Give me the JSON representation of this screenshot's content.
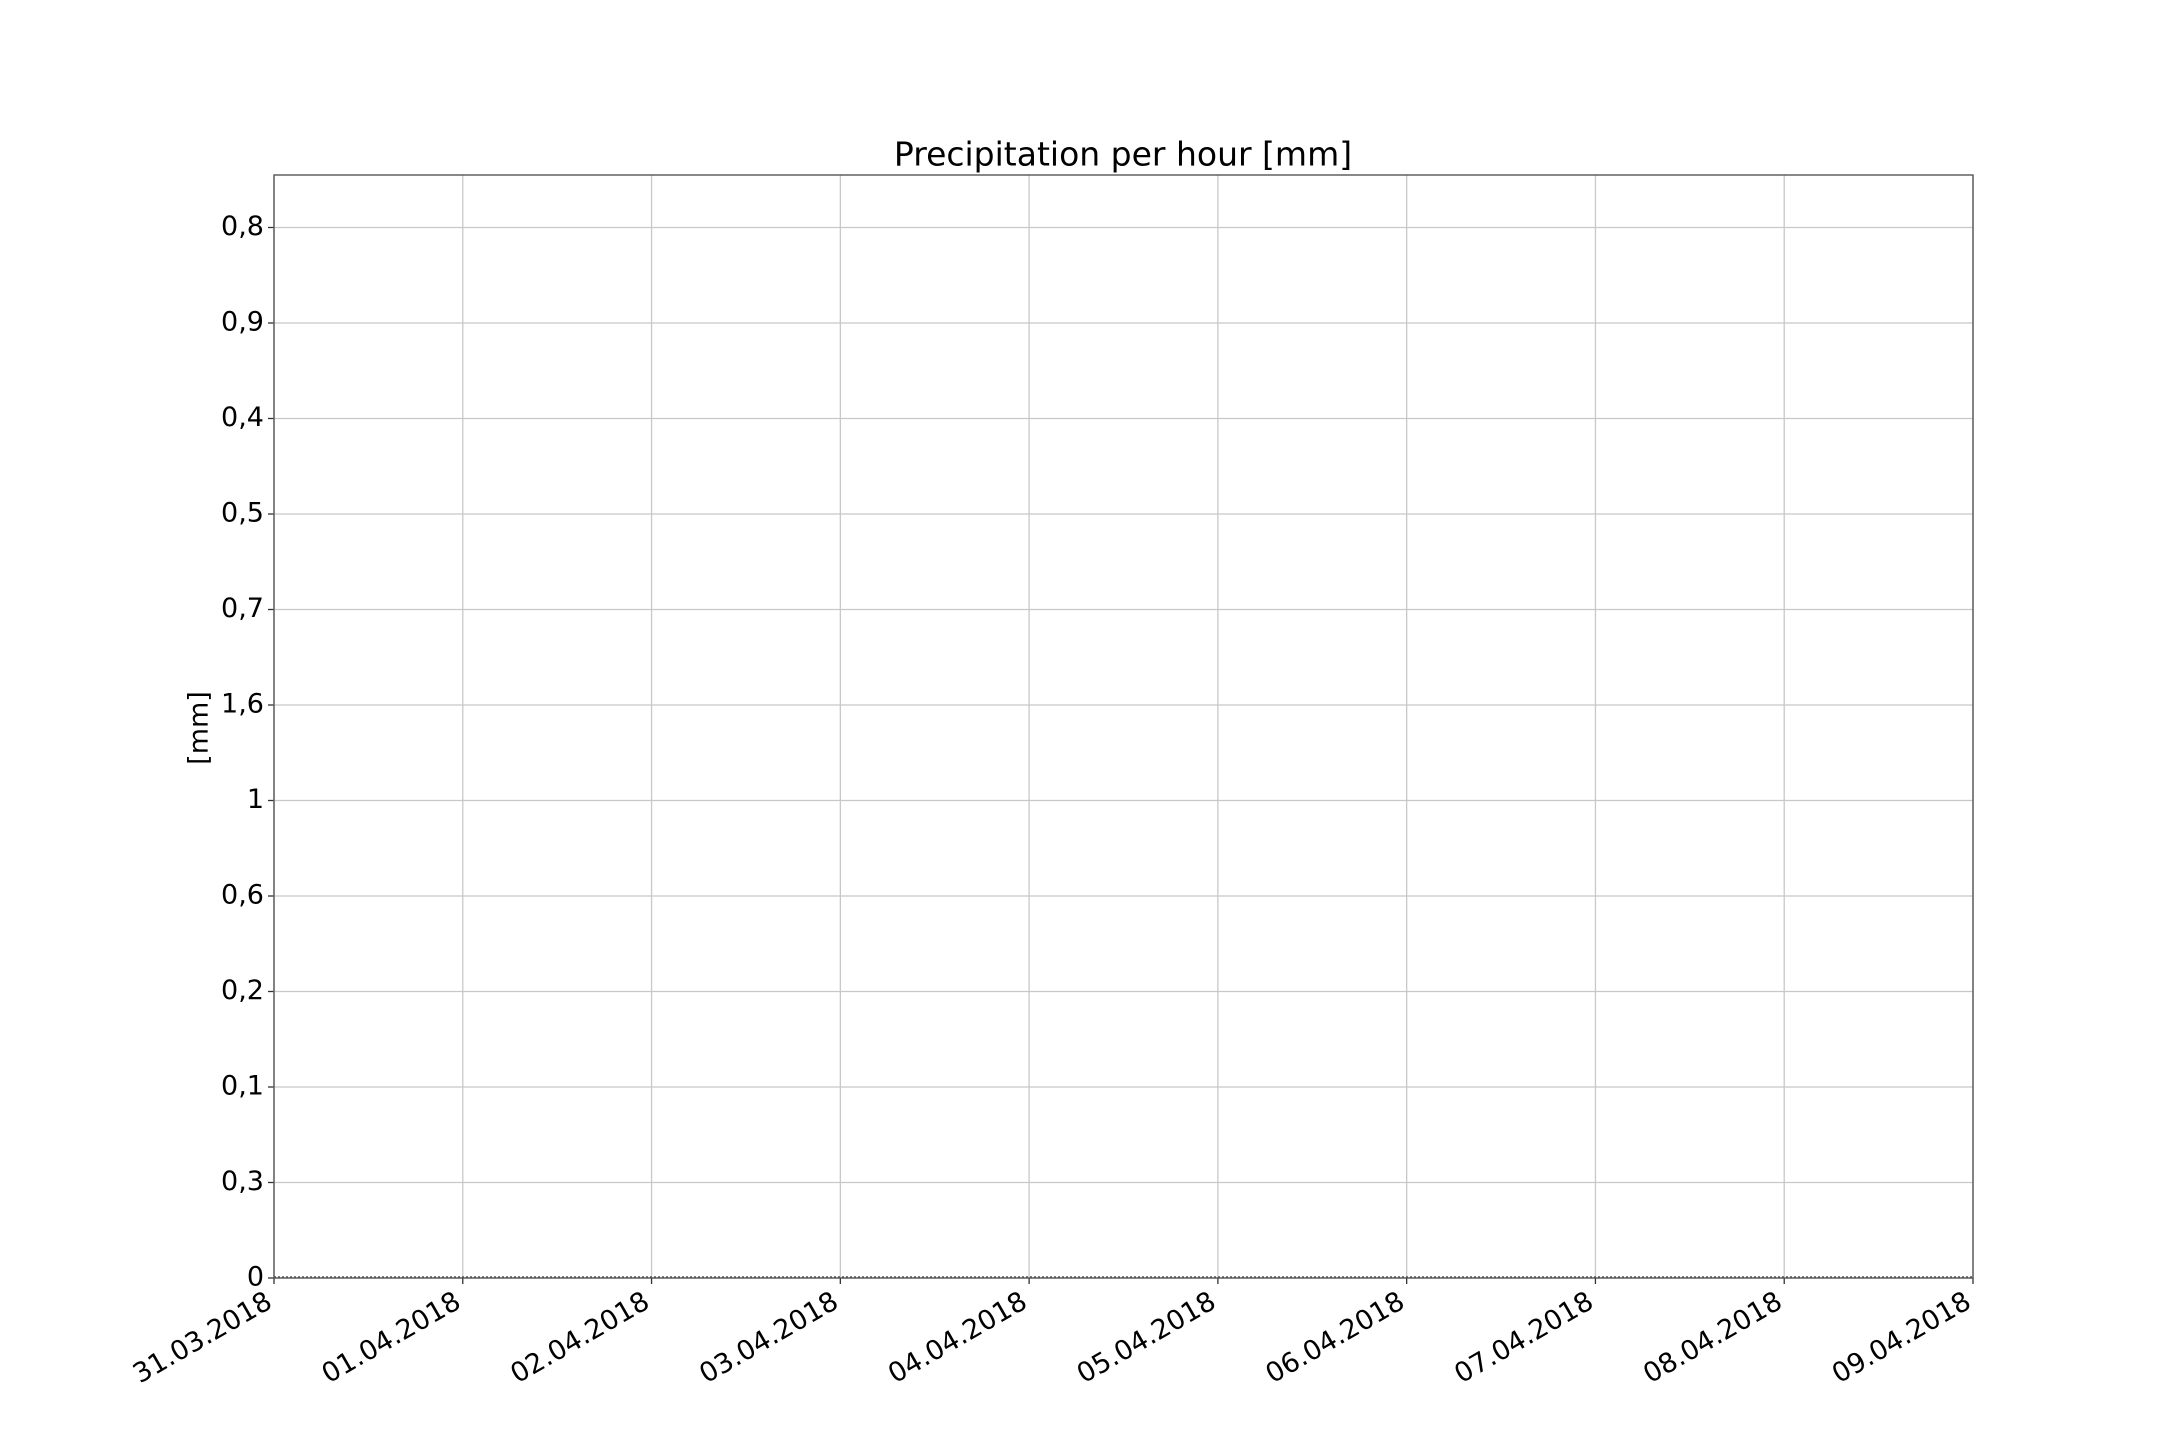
{
  "chart_data": {
    "type": "line",
    "title": "Precipitation per hour [mm]",
    "y_label": "[mm]",
    "xticks": [
      "31.03.2018",
      "01.04.2018",
      "02.04.2018",
      "03.04.2018",
      "04.04.2018",
      "05.04.2018",
      "06.04.2018",
      "07.04.2018",
      "08.04.2018",
      "09.04.2018"
    ],
    "y_categories": [
      "0",
      "0,3",
      "0,1",
      "0,2",
      "0,6",
      "1",
      "1,6",
      "0,7",
      "0,5",
      "0,4",
      "0,9",
      "0,8"
    ],
    "grid": true
  }
}
